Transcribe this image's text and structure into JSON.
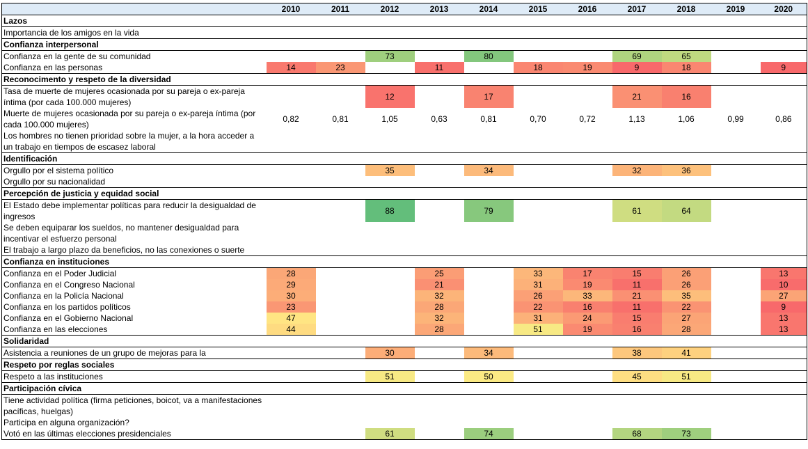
{
  "colors": {
    "header_background": "#DEEBF7",
    "border": "#000000"
  },
  "chart_data": {
    "type": "heatmap",
    "x": [
      "2010",
      "2011",
      "2012",
      "2013",
      "2014",
      "2015",
      "2016",
      "2017",
      "2018",
      "2019",
      "2020"
    ],
    "color_scale": {
      "type": "3-color-scale",
      "min_value": 9,
      "min_color": "#F8696B",
      "mid_value": 49,
      "mid_color": "#FFEB84",
      "max_value": 88,
      "max_color": "#63BE7B"
    },
    "sections": [
      {
        "title": "Lazos",
        "rows": [
          {
            "label": "Importancia de los amigos en la vida",
            "heat": true,
            "values": [
              null,
              null,
              null,
              null,
              null,
              null,
              null,
              null,
              null,
              null,
              null
            ]
          }
        ]
      },
      {
        "title": "Confianza interpersonal",
        "rows": [
          {
            "label": "Confianza en la gente de su comunidad",
            "heat": true,
            "values": [
              null,
              null,
              73,
              null,
              80,
              null,
              null,
              69,
              65,
              null,
              null
            ]
          },
          {
            "label": "Confianza en las personas",
            "heat": true,
            "values": [
              14,
              23,
              null,
              11,
              null,
              18,
              19,
              9,
              18,
              null,
              9
            ]
          }
        ]
      },
      {
        "title": "Reconocimento y respeto de la diversidad",
        "rows": [
          {
            "label": "Tasa de muerte de mujeres ocasionada por su pareja o ex-pareja íntima (por cada 100.000 mujeres)",
            "heat": true,
            "values": [
              null,
              null,
              12,
              null,
              17,
              null,
              null,
              21,
              16,
              null,
              null
            ]
          },
          {
            "label": "Muerte de mujeres ocasionada por su pareja o ex-pareja íntima (por cada 100.000 mujeres)",
            "heat": false,
            "values": [
              "0,82",
              "0,81",
              "1,05",
              "0,63",
              "0,81",
              "0,70",
              "0,72",
              "1,13",
              "1,06",
              "0,99",
              "0,86"
            ]
          },
          {
            "label": "Los hombres no tienen prioridad sobre la mujer, a la hora acceder a un trabajo en tiempos de escasez laboral",
            "heat": true,
            "values": [
              null,
              null,
              null,
              null,
              null,
              null,
              null,
              null,
              null,
              null,
              null
            ]
          }
        ]
      },
      {
        "title": "Identificación",
        "rows": [
          {
            "label": "Orgullo por el sistema político",
            "heat": true,
            "values": [
              null,
              null,
              35,
              null,
              34,
              null,
              null,
              32,
              36,
              null,
              null
            ]
          },
          {
            "label": "Orgullo por su nacionalidad",
            "heat": true,
            "values": [
              null,
              null,
              null,
              null,
              null,
              null,
              null,
              null,
              null,
              null,
              null
            ]
          }
        ]
      },
      {
        "title": "Percepción de justicia y equidad social",
        "rows": [
          {
            "label": "El Estado debe implementar políticas para reducir la desigualdad de ingresos",
            "heat": true,
            "values": [
              null,
              null,
              88,
              null,
              79,
              null,
              null,
              61,
              64,
              null,
              null
            ]
          },
          {
            "label": "Se deben equiparar los sueldos, no mantener desigualdad para incentivar el esfuerzo personal",
            "heat": true,
            "values": [
              null,
              null,
              null,
              null,
              null,
              null,
              null,
              null,
              null,
              null,
              null
            ]
          },
          {
            "label": "El trabajo a largo plazo da beneficios, no las conexiones o suerte",
            "heat": true,
            "values": [
              null,
              null,
              null,
              null,
              null,
              null,
              null,
              null,
              null,
              null,
              null
            ]
          }
        ]
      },
      {
        "title": "Confianza en instituciones",
        "rows": [
          {
            "label": "Confianza en el Poder Judicial",
            "heat": true,
            "values": [
              28,
              null,
              null,
              25,
              null,
              33,
              17,
              15,
              26,
              null,
              13
            ]
          },
          {
            "label": "Confianza en el Congreso Nacional",
            "heat": true,
            "values": [
              29,
              null,
              null,
              21,
              null,
              31,
              19,
              11,
              26,
              null,
              10
            ]
          },
          {
            "label": "Confianza en la Policía Nacional",
            "heat": true,
            "values": [
              30,
              null,
              null,
              32,
              null,
              26,
              33,
              21,
              35,
              null,
              27
            ]
          },
          {
            "label": "Confianza en los partidos políticos",
            "heat": true,
            "values": [
              23,
              null,
              null,
              28,
              null,
              22,
              16,
              11,
              22,
              null,
              9
            ]
          },
          {
            "label": "Confianza en el Gobierno Nacional",
            "heat": true,
            "values": [
              47,
              null,
              null,
              32,
              null,
              31,
              24,
              15,
              27,
              null,
              13
            ]
          },
          {
            "label": "Confianza en las elecciones",
            "heat": true,
            "values": [
              44,
              null,
              null,
              28,
              null,
              51,
              19,
              16,
              28,
              null,
              13
            ]
          }
        ]
      },
      {
        "title": "Solidaridad",
        "rows": [
          {
            "label": "Asistencia a reuniones de un grupo de mejoras para la",
            "heat": true,
            "values": [
              null,
              null,
              30,
              null,
              34,
              null,
              null,
              38,
              41,
              null,
              null
            ]
          }
        ]
      },
      {
        "title": "Respeto por reglas sociales",
        "rows": [
          {
            "label": "Respeto a las instituciones",
            "heat": true,
            "values": [
              null,
              null,
              51,
              null,
              50,
              null,
              null,
              45,
              51,
              null,
              null
            ]
          }
        ]
      },
      {
        "title": "Participación cívica",
        "rows": [
          {
            "label": "Tiene actividad política (firma peticiones, boicot, va a manifestaciones pacíficas, huelgas)",
            "heat": true,
            "values": [
              null,
              null,
              null,
              null,
              null,
              null,
              null,
              null,
              null,
              null,
              null
            ]
          },
          {
            "label": "Participa en alguna organización?",
            "heat": true,
            "values": [
              null,
              null,
              null,
              null,
              null,
              null,
              null,
              null,
              null,
              null,
              null
            ]
          },
          {
            "label": "Votó en las últimas elecciones presidenciales",
            "heat": true,
            "values": [
              null,
              null,
              61,
              null,
              74,
              null,
              null,
              68,
              73,
              null,
              null
            ]
          }
        ]
      }
    ]
  }
}
